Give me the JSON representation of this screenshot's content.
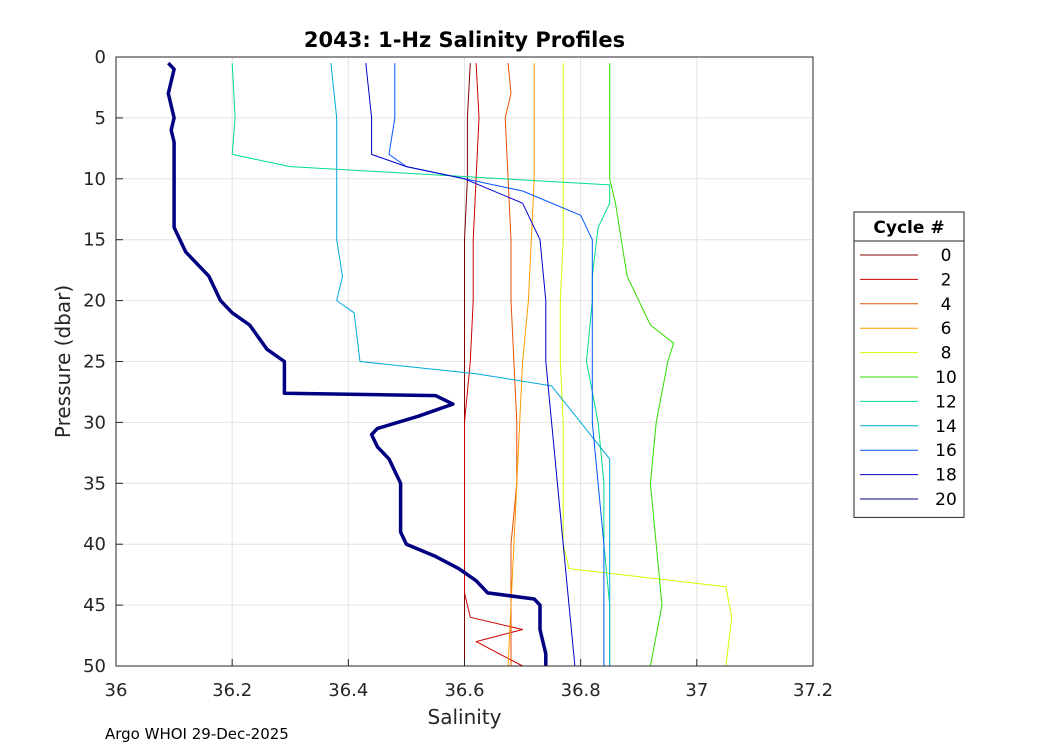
{
  "chart_data": {
    "type": "line",
    "title": "2043: 1-Hz Salinity Profiles",
    "xlabel": "Salinity",
    "ylabel": "Pressure (dbar)",
    "xlim": [
      36,
      37.2
    ],
    "ylim": [
      0,
      50
    ],
    "y_reversed": true,
    "grid": true,
    "xticks": [
      36,
      36.2,
      36.4,
      36.6,
      36.8,
      37,
      37.2
    ],
    "xtick_labels": [
      "36",
      "36.2",
      "36.4",
      "36.6",
      "36.8",
      "37",
      "37.2"
    ],
    "yticks": [
      0,
      5,
      10,
      15,
      20,
      25,
      30,
      35,
      40,
      45,
      50
    ],
    "ytick_labels": [
      "0",
      "5",
      "10",
      "15",
      "20",
      "25",
      "30",
      "35",
      "40",
      "45",
      "50"
    ],
    "legend": {
      "title": "Cycle #",
      "placement": "right"
    },
    "series": [
      {
        "name": "0",
        "color": "#800000",
        "points": [
          [
            36.61,
            0.5
          ],
          [
            36.605,
            5
          ],
          [
            36.605,
            10
          ],
          [
            36.6,
            15
          ],
          [
            36.6,
            20
          ],
          [
            36.6,
            25
          ],
          [
            36.6,
            30
          ],
          [
            36.6,
            35
          ],
          [
            36.6,
            40
          ],
          [
            36.6,
            45
          ],
          [
            36.6,
            50
          ]
        ]
      },
      {
        "name": "2",
        "color": "#cc0000",
        "points": [
          [
            36.62,
            0.5
          ],
          [
            36.625,
            5
          ],
          [
            36.62,
            10
          ],
          [
            36.615,
            15
          ],
          [
            36.615,
            20
          ],
          [
            36.61,
            25
          ],
          [
            36.6,
            30
          ],
          [
            36.6,
            35
          ],
          [
            36.6,
            40
          ],
          [
            36.6,
            44
          ],
          [
            36.61,
            46
          ],
          [
            36.7,
            47
          ],
          [
            36.62,
            48
          ],
          [
            36.66,
            49
          ],
          [
            36.7,
            50
          ]
        ]
      },
      {
        "name": "4",
        "color": "#e65000",
        "points": [
          [
            36.675,
            0.5
          ],
          [
            36.68,
            3
          ],
          [
            36.67,
            5
          ],
          [
            36.675,
            10
          ],
          [
            36.68,
            15
          ],
          [
            36.68,
            20
          ],
          [
            36.685,
            25
          ],
          [
            36.69,
            30
          ],
          [
            36.69,
            35
          ],
          [
            36.68,
            40
          ],
          [
            36.68,
            45
          ],
          [
            36.68,
            50
          ]
        ]
      },
      {
        "name": "6",
        "color": "#ff9900",
        "points": [
          [
            36.72,
            0.5
          ],
          [
            36.72,
            5
          ],
          [
            36.72,
            10
          ],
          [
            36.715,
            15
          ],
          [
            36.71,
            20
          ],
          [
            36.7,
            25
          ],
          [
            36.695,
            30
          ],
          [
            36.69,
            35
          ],
          [
            36.685,
            40
          ],
          [
            36.68,
            45
          ],
          [
            36.675,
            50
          ]
        ]
      },
      {
        "name": "8",
        "color": "#ccff00",
        "points": [
          [
            36.77,
            0.5
          ],
          [
            36.77,
            5
          ],
          [
            36.77,
            10
          ],
          [
            36.77,
            15
          ],
          [
            36.765,
            20
          ],
          [
            36.765,
            25
          ],
          [
            36.77,
            30
          ],
          [
            36.77,
            35
          ],
          [
            36.77,
            40
          ],
          [
            36.78,
            42
          ],
          [
            37.05,
            43.5
          ],
          [
            37.06,
            46
          ],
          [
            37.05,
            50
          ]
        ]
      },
      {
        "name": "10",
        "color": "#33dd00",
        "points": [
          [
            36.85,
            0.5
          ],
          [
            36.85,
            5
          ],
          [
            36.85,
            10
          ],
          [
            36.86,
            12
          ],
          [
            36.88,
            18
          ],
          [
            36.92,
            22
          ],
          [
            36.96,
            23.5
          ],
          [
            36.95,
            25
          ],
          [
            36.93,
            30
          ],
          [
            36.92,
            35
          ],
          [
            36.93,
            40
          ],
          [
            36.94,
            45
          ],
          [
            36.92,
            50
          ]
        ]
      },
      {
        "name": "12",
        "color": "#00dd88",
        "points": [
          [
            36.2,
            0.5
          ],
          [
            36.205,
            5
          ],
          [
            36.2,
            8
          ],
          [
            36.3,
            9
          ],
          [
            36.85,
            10.5
          ],
          [
            36.85,
            12
          ],
          [
            36.83,
            14
          ],
          [
            36.82,
            18
          ],
          [
            36.82,
            20
          ],
          [
            36.81,
            25
          ],
          [
            36.83,
            30
          ],
          [
            36.84,
            35
          ],
          [
            36.84,
            40
          ],
          [
            36.85,
            45
          ],
          [
            36.85,
            50
          ]
        ]
      },
      {
        "name": "14",
        "color": "#00aadd",
        "points": [
          [
            36.37,
            0.5
          ],
          [
            36.38,
            5
          ],
          [
            36.38,
            10
          ],
          [
            36.38,
            15
          ],
          [
            36.39,
            18
          ],
          [
            36.38,
            20
          ],
          [
            36.41,
            21
          ],
          [
            36.42,
            25
          ],
          [
            36.62,
            26
          ],
          [
            36.75,
            27
          ],
          [
            36.8,
            30
          ],
          [
            36.85,
            33
          ],
          [
            36.85,
            40
          ],
          [
            36.85,
            45
          ],
          [
            36.85,
            50
          ]
        ]
      },
      {
        "name": "16",
        "color": "#0055ff",
        "points": [
          [
            36.48,
            0.5
          ],
          [
            36.48,
            5
          ],
          [
            36.47,
            8
          ],
          [
            36.5,
            9
          ],
          [
            36.6,
            10
          ],
          [
            36.7,
            11
          ],
          [
            36.8,
            13
          ],
          [
            36.82,
            15
          ],
          [
            36.82,
            20
          ],
          [
            36.82,
            25
          ],
          [
            36.82,
            30
          ],
          [
            36.83,
            35
          ],
          [
            36.84,
            40
          ],
          [
            36.84,
            45
          ],
          [
            36.84,
            50
          ]
        ]
      },
      {
        "name": "18",
        "color": "#0000cc",
        "points": [
          [
            36.43,
            0.5
          ],
          [
            36.44,
            5
          ],
          [
            36.44,
            8
          ],
          [
            36.5,
            9
          ],
          [
            36.6,
            10
          ],
          [
            36.7,
            12
          ],
          [
            36.73,
            15
          ],
          [
            36.74,
            20
          ],
          [
            36.74,
            25
          ],
          [
            36.75,
            30
          ],
          [
            36.76,
            35
          ],
          [
            36.77,
            40
          ],
          [
            36.78,
            45
          ],
          [
            36.79,
            50
          ]
        ]
      },
      {
        "name": "20",
        "color": "#000080",
        "points": [
          [
            36.09,
            0.5
          ],
          [
            36.1,
            1
          ],
          [
            36.09,
            3
          ],
          [
            36.1,
            5
          ],
          [
            36.095,
            6
          ],
          [
            36.1,
            7
          ],
          [
            36.1,
            10
          ],
          [
            36.1,
            14
          ],
          [
            36.12,
            16
          ],
          [
            36.14,
            17
          ],
          [
            36.16,
            18
          ],
          [
            36.18,
            20
          ],
          [
            36.2,
            21
          ],
          [
            36.23,
            22
          ],
          [
            36.26,
            24
          ],
          [
            36.29,
            25
          ],
          [
            36.29,
            27.5
          ],
          [
            36.29,
            27.6
          ],
          [
            36.55,
            27.8
          ],
          [
            36.58,
            28.5
          ],
          [
            36.52,
            29.5
          ],
          [
            36.45,
            30.5
          ],
          [
            36.44,
            31
          ],
          [
            36.45,
            32
          ],
          [
            36.47,
            33
          ],
          [
            36.48,
            34
          ],
          [
            36.49,
            35
          ],
          [
            36.49,
            37
          ],
          [
            36.49,
            39
          ],
          [
            36.5,
            40
          ],
          [
            36.55,
            41
          ],
          [
            36.59,
            42
          ],
          [
            36.62,
            43
          ],
          [
            36.64,
            44
          ],
          [
            36.72,
            44.5
          ],
          [
            36.73,
            45
          ],
          [
            36.73,
            47
          ],
          [
            36.74,
            49
          ],
          [
            36.74,
            50
          ]
        ],
        "bold": true
      }
    ]
  },
  "footer": {
    "text": "Argo WHOI 29-Dec-2025"
  }
}
